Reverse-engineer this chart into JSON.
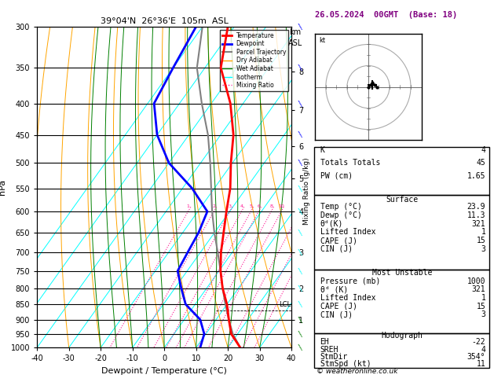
{
  "title_left": "39°04'N  26°36'E  105m  ASL",
  "title_right": "26.05.2024  00GMT  (Base: 18)",
  "xlabel": "Dewpoint / Temperature (°C)",
  "ylabel_left": "hPa",
  "pressure_levels": [
    300,
    350,
    400,
    450,
    500,
    550,
    600,
    650,
    700,
    750,
    800,
    850,
    900,
    950,
    1000
  ],
  "T_min": -40,
  "T_max": 40,
  "skew": 45,
  "temp_profile_p": [
    1000,
    950,
    900,
    850,
    800,
    750,
    700,
    600,
    550,
    500,
    450,
    400,
    350,
    300
  ],
  "temp_profile_T": [
    23.9,
    18.0,
    14.0,
    10.0,
    5.0,
    0.5,
    -3.5,
    -11.0,
    -15.0,
    -20.5,
    -26.0,
    -34.0,
    -45.0,
    -52.0
  ],
  "dewp_profile_p": [
    1000,
    950,
    900,
    850,
    800,
    750,
    700,
    650,
    600,
    550,
    500,
    450,
    400,
    350,
    300
  ],
  "dewp_profile_T": [
    11.3,
    9.5,
    5.0,
    -3.0,
    -8.0,
    -13.0,
    -14.0,
    -15.0,
    -17.0,
    -27.0,
    -40.0,
    -50.0,
    -58.0,
    -60.0,
    -62.0
  ],
  "parcel_profile_p": [
    1000,
    950,
    900,
    850,
    800,
    750,
    700,
    650,
    600,
    550,
    500,
    450,
    400,
    350,
    300
  ],
  "parcel_profile_T": [
    23.9,
    18.5,
    14.0,
    9.5,
    5.0,
    0.5,
    -4.5,
    -10.0,
    -15.5,
    -21.0,
    -27.0,
    -34.0,
    -43.0,
    -52.5,
    -60.0
  ],
  "dry_adiabat_thetas": [
    -40,
    -30,
    -20,
    -10,
    0,
    10,
    20,
    30,
    40,
    50,
    60,
    70,
    80,
    90,
    100,
    110,
    120,
    130,
    140
  ],
  "wet_adiabat_starts": [
    -20,
    -15,
    -10,
    -5,
    0,
    5,
    10,
    15,
    20,
    25,
    30
  ],
  "mixing_ratios": [
    1,
    2,
    3,
    4,
    5,
    6,
    8,
    10,
    15,
    20,
    25
  ],
  "lcl_pressure": 870,
  "km_pressures": [
    900,
    800,
    700,
    600,
    530,
    470,
    410,
    355
  ],
  "km_values": [
    1,
    2,
    3,
    4,
    5,
    6,
    7,
    8
  ],
  "hodo_u": [
    0,
    1,
    2,
    3,
    4
  ],
  "hodo_v": [
    0,
    1,
    2,
    1,
    0
  ],
  "hodo_storm_u": 2,
  "hodo_storm_v": 1,
  "wx_K": 4,
  "wx_TT": 45,
  "wx_PW": "1.65",
  "wx_sfc_temp": "23.9",
  "wx_sfc_dewp": "11.3",
  "wx_sfc_the": "321",
  "wx_sfc_li": "1",
  "wx_sfc_cape": "15",
  "wx_sfc_cin": "3",
  "wx_mu_pres": "1000",
  "wx_mu_the": "321",
  "wx_mu_li": "1",
  "wx_mu_cape": "15",
  "wx_mu_cin": "3",
  "wx_eh": "-22",
  "wx_sreh": "4",
  "wx_stmdir": "354°",
  "wx_stmspd": "11",
  "wind_barb_colors": {
    "300": "blue",
    "350": "blue",
    "400": "blue",
    "450": "blue",
    "500": "blue",
    "550": "cyan",
    "600": "cyan",
    "650": "cyan",
    "700": "cyan",
    "750": "cyan",
    "800": "cyan",
    "850": "cyan",
    "900": "green",
    "950": "green",
    "1000": "green"
  },
  "wind_barb_pressures": [
    300,
    350,
    400,
    450,
    500,
    550,
    600,
    650,
    700,
    750,
    800,
    850,
    900,
    950,
    1000
  ]
}
